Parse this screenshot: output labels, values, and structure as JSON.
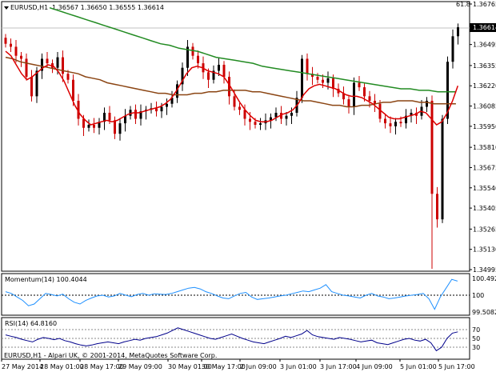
{
  "main": {
    "header": {
      "symbol": "EURUSD,H1",
      "ohlc": "1.36567 1.36650 1.36555 1.36614"
    },
    "annotation": "61.8",
    "price_labels": [
      "1.36765",
      "1.36614",
      "1.36495",
      "1.36355",
      "1.36220",
      "1.36085",
      "1.35950",
      "1.35810",
      "1.35675",
      "1.35540",
      "1.35405",
      "1.35265",
      "1.35130",
      "1.34995"
    ],
    "current_price": "1.36614"
  },
  "momentum": {
    "label": "Momentum(14) 100.4044",
    "scale": [
      "100.4926",
      "100",
      "99.5082"
    ]
  },
  "rsi": {
    "label": "RSI(14) 64.8160",
    "scale": [
      "70",
      "50",
      "30"
    ],
    "copyright": "EURUSD,H1 - Alpari UK, © 2001-2014, MetaQuotes Software Corp."
  },
  "time_labels": [
    "27 May 2014",
    "28 May 01:00",
    "28 May 17:00",
    "29 May 09:00",
    "30 May 01:00",
    "30 May 17:00",
    "2 Jun 09:00",
    "3 Jun 01:00",
    "3 Jun 17:00",
    "4 Jun 09:00",
    "5 Jun 01:00",
    "5 Jun 17:00"
  ],
  "colors": {
    "candle_bull": "#000000",
    "candle_bear": "#cc0000",
    "ma_fast": "#dd0000",
    "ma_mid": "#8b4513",
    "ma_slow": "#228b22",
    "indicator_line": "#1e90ff"
  },
  "chart_data": {
    "type": "candlestick",
    "price_close": [
      1.365,
      1.3648,
      1.3642,
      1.364,
      1.3628,
      1.3615,
      1.3632,
      1.364,
      1.3637,
      1.3634,
      1.3641,
      1.363,
      1.3626,
      1.3612,
      1.36,
      1.3594,
      1.3596,
      1.3594,
      1.3598,
      1.3604,
      1.3599,
      1.359,
      1.3597,
      1.3602,
      1.3606,
      1.36,
      1.3605,
      1.3606,
      1.3607,
      1.3605,
      1.3608,
      1.361,
      1.3614,
      1.3623,
      1.3634,
      1.3648,
      1.3642,
      1.3637,
      1.3631,
      1.3626,
      1.3632,
      1.3636,
      1.3628,
      1.3615,
      1.3608,
      1.3606,
      1.36,
      1.3598,
      1.3596,
      1.3597,
      1.3599,
      1.3601,
      1.3604,
      1.36,
      1.3602,
      1.3604,
      1.3614,
      1.364,
      1.363,
      1.3628,
      1.3626,
      1.3624,
      1.3627,
      1.362,
      1.3617,
      1.3613,
      1.3608,
      1.3624,
      1.3621,
      1.3615,
      1.3612,
      1.361,
      1.36,
      1.3597,
      1.3595,
      1.3598,
      1.3597,
      1.3602,
      1.3604,
      1.3602,
      1.3608,
      1.3612,
      1.355,
      1.3533,
      1.36,
      1.3638,
      1.3655,
      1.3661
    ],
    "ma_fast": [
      1.3645,
      1.3642,
      1.3636,
      1.363,
      1.3626,
      1.3628,
      1.3631,
      1.3634,
      1.3636,
      1.3635,
      1.3631,
      1.3625,
      1.3617,
      1.3609,
      1.3603,
      1.3599,
      1.3596,
      1.3597,
      1.3598,
      1.3599,
      1.3598,
      1.3599,
      1.3601,
      1.3603,
      1.3604,
      1.3604,
      1.3605,
      1.3606,
      1.3607,
      1.3608,
      1.361,
      1.3613,
      1.3618,
      1.3624,
      1.363,
      1.3634,
      1.3635,
      1.3634,
      1.3632,
      1.3631,
      1.363,
      1.3628,
      1.3623,
      1.3617,
      1.3611,
      1.3606,
      1.3602,
      1.3599,
      1.3598,
      1.3598,
      1.3599,
      1.3601,
      1.3603,
      1.3604,
      1.3606,
      1.361,
      1.3616,
      1.362,
      1.3622,
      1.3623,
      1.3622,
      1.3621,
      1.362,
      1.3618,
      1.3616,
      1.3615,
      1.3615,
      1.3614,
      1.3612,
      1.361,
      1.3607,
      1.3604,
      1.3601,
      1.36,
      1.36,
      1.3601,
      1.3602,
      1.3603,
      1.3605,
      1.3604,
      1.36,
      1.3596,
      1.3598,
      1.3604,
      1.3612,
      1.3622
    ],
    "ma_mid": [
      1.3641,
      1.364,
      1.3638,
      1.3637,
      1.3636,
      1.3635,
      1.3634,
      1.3633,
      1.3632,
      1.3631,
      1.363,
      1.3628,
      1.3627,
      1.3626,
      1.3624,
      1.3623,
      1.3622,
      1.3621,
      1.362,
      1.3619,
      1.3618,
      1.3617,
      1.3617,
      1.3616,
      1.3616,
      1.3616,
      1.3617,
      1.3617,
      1.3618,
      1.3618,
      1.3619,
      1.3619,
      1.3619,
      1.3619,
      1.3618,
      1.3618,
      1.3617,
      1.3616,
      1.3615,
      1.3614,
      1.3613,
      1.3612,
      1.3612,
      1.3611,
      1.361,
      1.3609,
      1.3609,
      1.3608,
      1.3608,
      1.3609,
      1.3609,
      1.361,
      1.3611,
      1.3611,
      1.3612,
      1.3612,
      1.3612,
      1.3611,
      1.3611,
      1.361,
      1.361,
      1.361,
      1.361
    ],
    "ma_slow": [
      1.3674,
      1.3672,
      1.367,
      1.3668,
      1.3666,
      1.3664,
      1.3662,
      1.366,
      1.3658,
      1.3656,
      1.3654,
      1.3652,
      1.365,
      1.3649,
      1.3647,
      1.3646,
      1.3645,
      1.3643,
      1.3641,
      1.364,
      1.3639,
      1.3638,
      1.3637,
      1.3635,
      1.3634,
      1.3633,
      1.3632,
      1.3631,
      1.363,
      1.3629,
      1.3628,
      1.3627,
      1.3626,
      1.3625,
      1.3624,
      1.3623,
      1.3622,
      1.3621,
      1.362,
      1.362,
      1.3619,
      1.3619,
      1.3618,
      1.3618,
      1.3618
    ],
    "momentum": [
      100.1,
      100.05,
      99.95,
      99.85,
      99.7,
      99.75,
      99.9,
      100.05,
      100.02,
      99.98,
      100.03,
      99.9,
      99.8,
      99.75,
      99.85,
      99.92,
      99.98,
      100.0,
      99.95,
      99.98,
      100.05,
      100.0,
      99.96,
      100.02,
      100.05,
      100.0,
      100.04,
      100.03,
      100.02,
      100.05,
      100.1,
      100.15,
      100.2,
      100.22,
      100.18,
      100.1,
      100.05,
      99.98,
      99.92,
      99.9,
      99.98,
      100.05,
      100.08,
      99.95,
      99.88,
      99.9,
      99.92,
      99.95,
      99.98,
      100.0,
      100.04,
      100.08,
      100.12,
      100.1,
      100.15,
      100.2,
      100.3,
      100.1,
      100.05,
      100.0,
      99.98,
      99.95,
      99.92,
      100.0,
      100.05,
      99.98,
      99.95,
      99.9,
      99.92,
      99.95,
      99.98,
      100.0,
      100.02,
      100.05,
      99.9,
      99.6,
      99.95,
      100.2,
      100.45,
      100.4
    ],
    "rsi": [
      58,
      55,
      52,
      48,
      45,
      42,
      48,
      52,
      50,
      47,
      50,
      45,
      42,
      38,
      35,
      33,
      35,
      38,
      40,
      42,
      40,
      38,
      42,
      45,
      48,
      46,
      50,
      52,
      54,
      58,
      62,
      68,
      74,
      70,
      66,
      62,
      58,
      54,
      50,
      48,
      52,
      56,
      60,
      55,
      50,
      46,
      42,
      40,
      38,
      42,
      46,
      50,
      55,
      52,
      56,
      60,
      68,
      58,
      54,
      52,
      50,
      48,
      52,
      50,
      48,
      45,
      42,
      44,
      46,
      40,
      38,
      36,
      40,
      44,
      48,
      50,
      46,
      44,
      48,
      40,
      22,
      30,
      50,
      62,
      65
    ]
  }
}
